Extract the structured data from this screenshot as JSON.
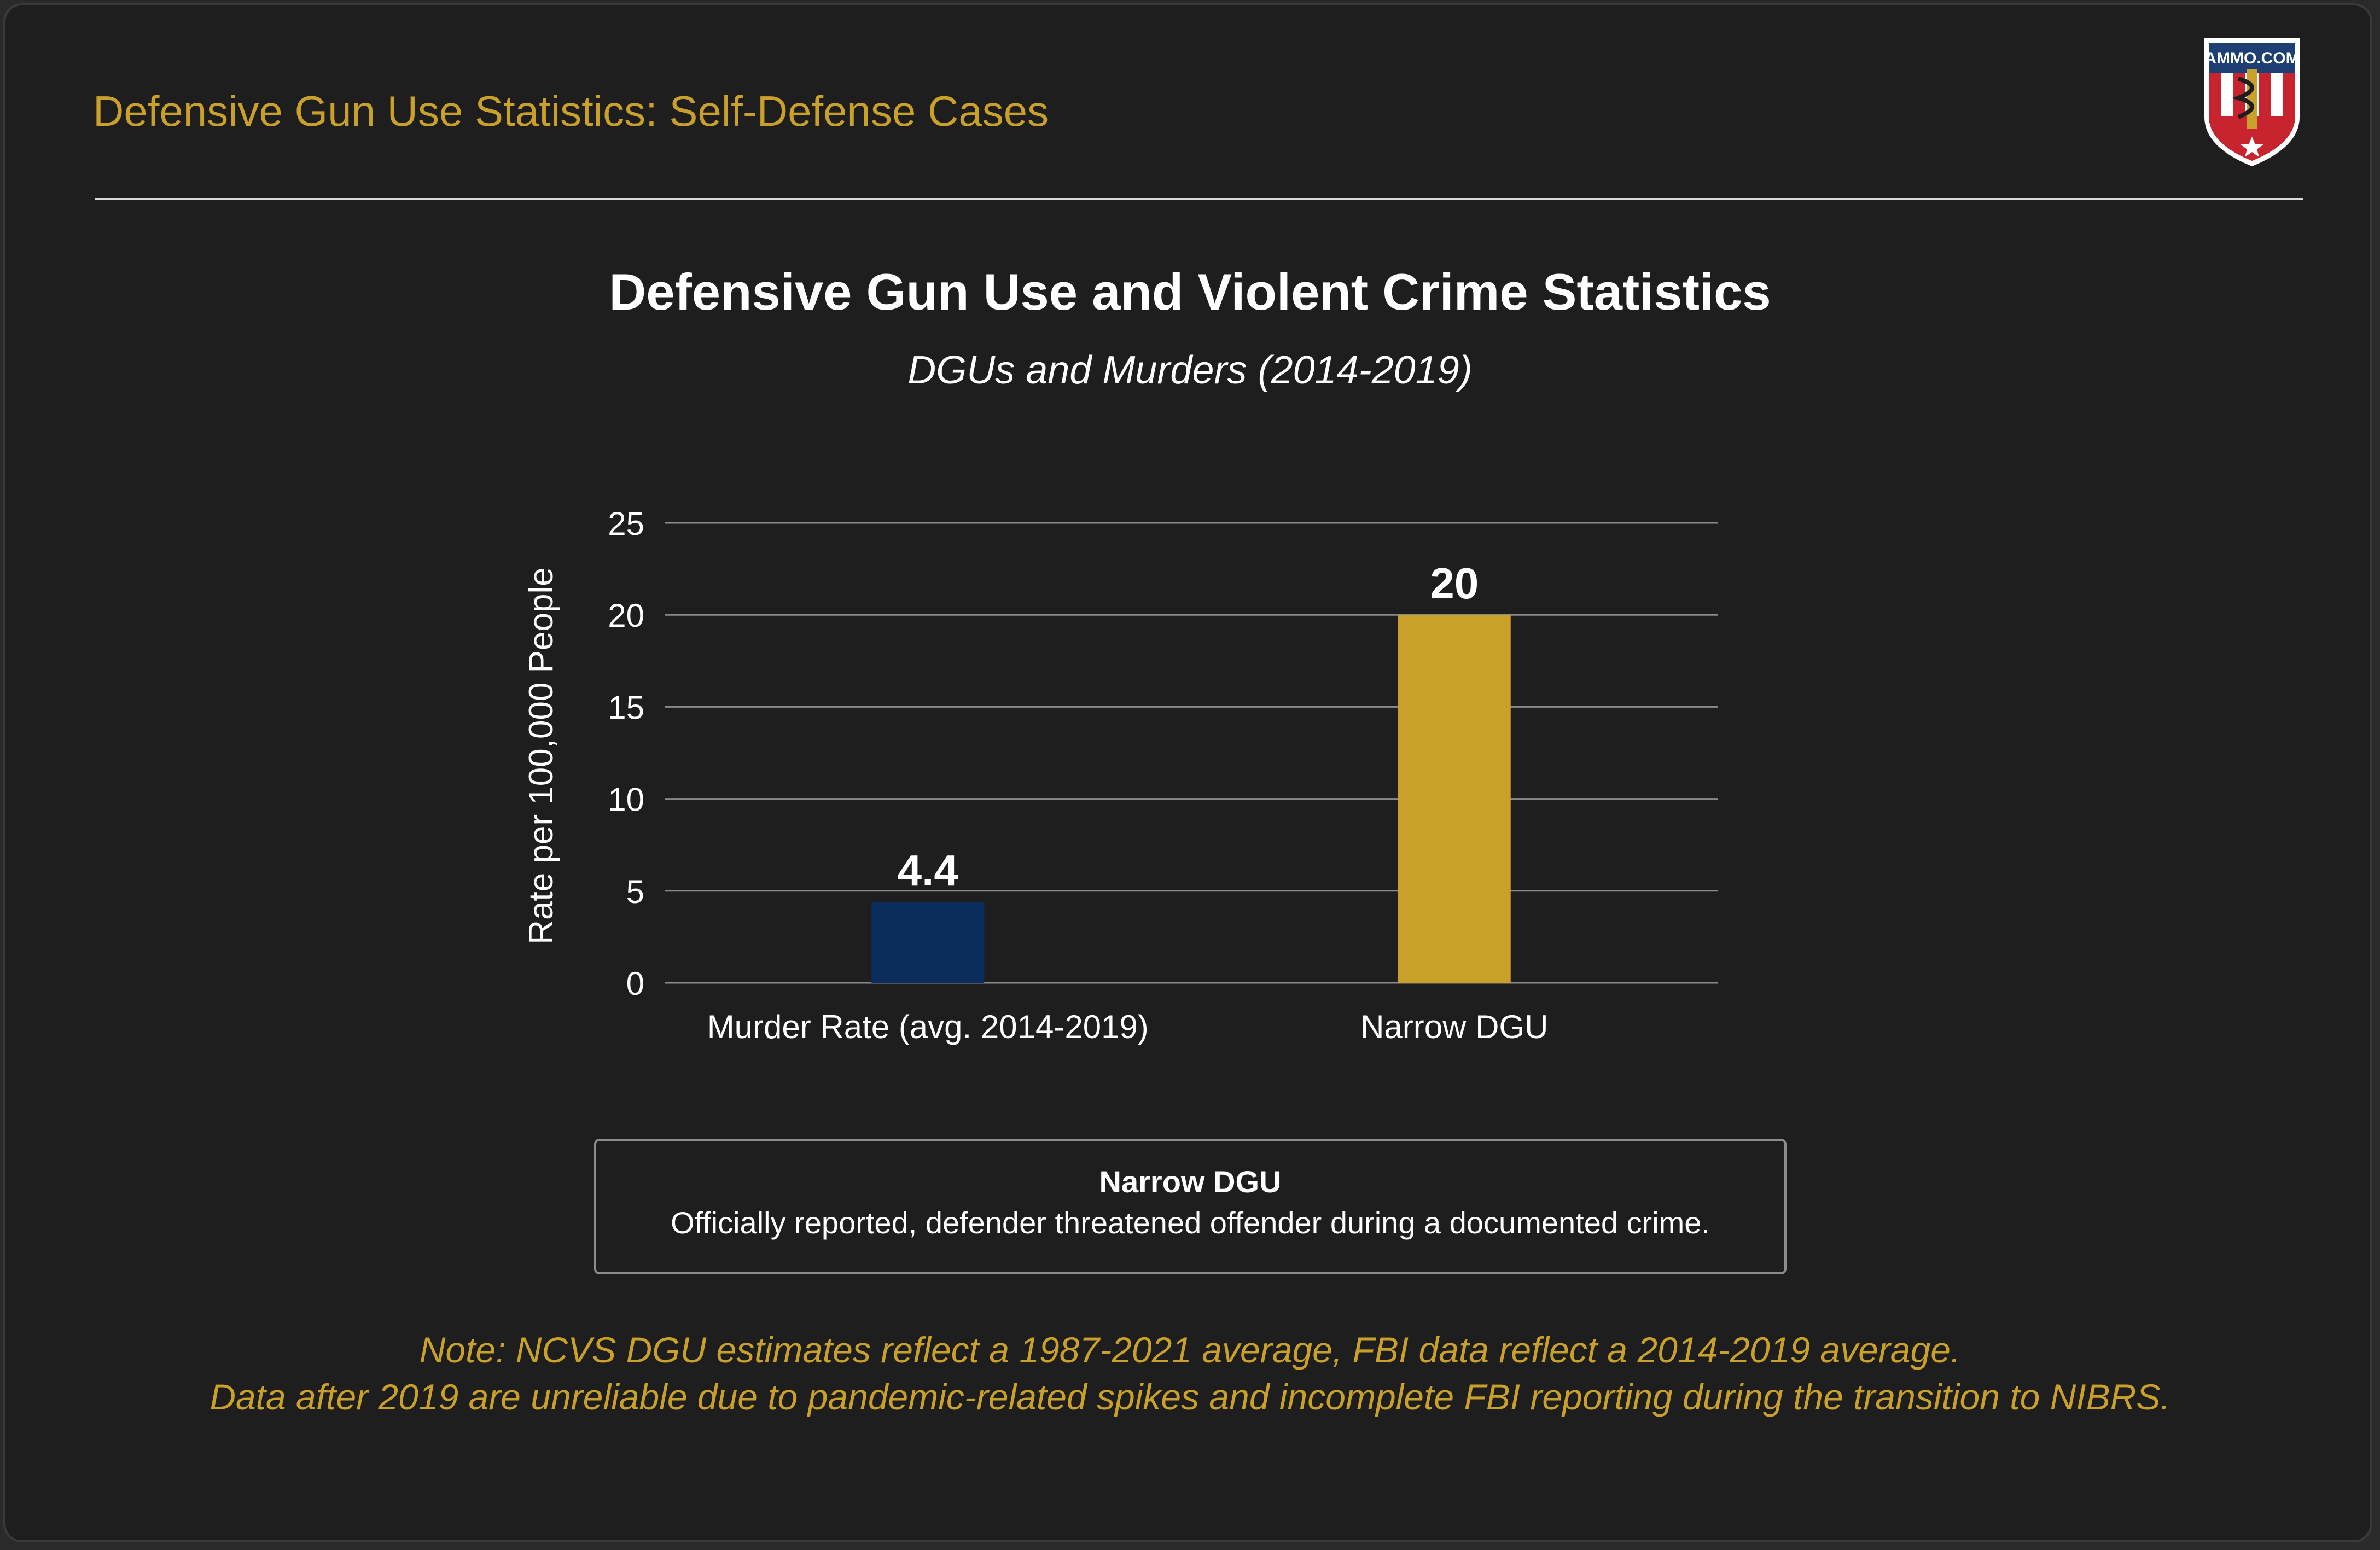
{
  "header": {
    "title": "Defensive Gun Use Statistics: Self-Defense Cases",
    "logo_text": "AMMO.COM"
  },
  "colors": {
    "accent": "#c9a02a",
    "murder_bar": "#0b2d5e",
    "dgu_bar": "#c9a02a",
    "background": "#1e1e1e"
  },
  "chart_data": {
    "type": "bar",
    "title": "Defensive Gun Use and Violent Crime Statistics",
    "subtitle": "DGUs and Murders (2014-2019)",
    "xlabel": "",
    "ylabel": "Rate per 100,000 People",
    "categories": [
      "Murder Rate (avg. 2014-2019)",
      "Narrow DGU"
    ],
    "values": [
      4.4,
      20
    ],
    "value_labels": [
      "4.4",
      "20"
    ],
    "bar_colors": [
      "#0b2d5e",
      "#c9a02a"
    ],
    "ylim": [
      0,
      25
    ],
    "yticks": [
      0,
      5,
      10,
      15,
      20,
      25
    ],
    "grid": true
  },
  "legend": {
    "title": "Narrow DGU",
    "description": "Officially reported, defender threatened offender during a documented crime."
  },
  "notes": [
    "Note: NCVS DGU estimates reflect a 1987-2021 average, FBI data reflect a 2014-2019 average.",
    "Data after 2019 are unreliable due to pandemic-related spikes and incomplete FBI reporting during the transition to NIBRS."
  ]
}
